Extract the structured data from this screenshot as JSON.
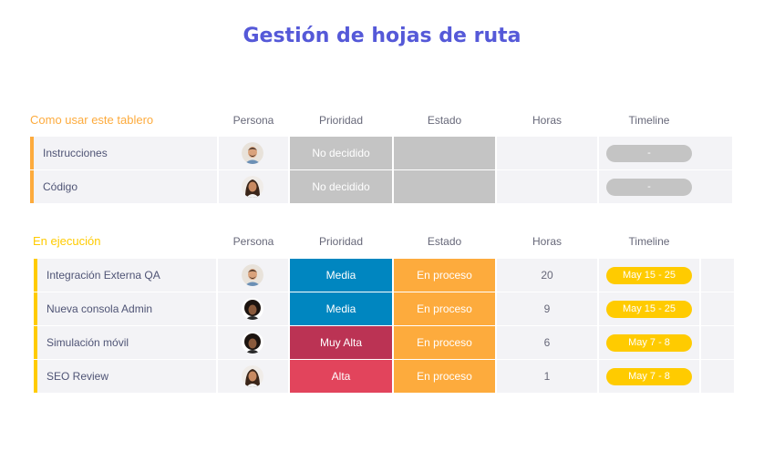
{
  "page": {
    "title": "Gestión de hojas de ruta"
  },
  "columns": [
    "Persona",
    "Prioridad",
    "Estado",
    "Horas",
    "Timeline"
  ],
  "colors": {
    "title": "#5559d8",
    "group1_accent": "#fdab3d",
    "group2_accent": "#ffcb00",
    "gray_cell": "#c4c4c4",
    "media": "#0086c0",
    "muy_alta": "#bb3354",
    "alta": "#e2445c",
    "en_proceso": "#fdab3d",
    "timeline_yellow": "#ffcb00"
  },
  "group1": {
    "title": "Como usar este tablero",
    "rows": [
      {
        "name": "Instrucciones",
        "avatar": "man-avatar-icon",
        "priority": "No decidido",
        "status": "",
        "hours": "",
        "timeline": "-"
      },
      {
        "name": "Código",
        "avatar": "woman-avatar-icon",
        "priority": "No decidido",
        "status": "",
        "hours": "",
        "timeline": "-"
      }
    ]
  },
  "group2": {
    "title": "En ejecución",
    "rows": [
      {
        "name": "Integración Externa QA",
        "avatar": "man-avatar-icon",
        "priority": "Media",
        "status": "En proceso",
        "hours": "20",
        "timeline": "May 15 - 25"
      },
      {
        "name": "Nueva consola Admin",
        "avatar": "curly-avatar-icon",
        "priority": "Media",
        "status": "En proceso",
        "hours": "9",
        "timeline": "May 15 - 25"
      },
      {
        "name": "Simulación móvil",
        "avatar": "curly-avatar-icon",
        "priority": "Muy Alta",
        "status": "En proceso",
        "hours": "6",
        "timeline": "May 7 - 8"
      },
      {
        "name": "SEO Review",
        "avatar": "woman-avatar-icon",
        "priority": "Alta",
        "status": "En proceso",
        "hours": "1",
        "timeline": "May 7 - 8"
      }
    ]
  }
}
